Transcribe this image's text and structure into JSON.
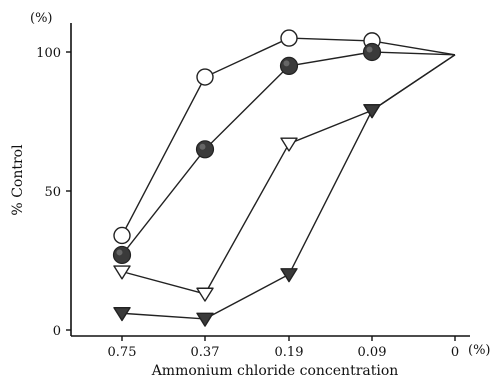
{
  "chart_data": {
    "type": "line",
    "xlabel": "Ammonium chloride concentration",
    "ylabel": "% Control",
    "x_unit": "(%)",
    "y_unit": "(%)",
    "categories": [
      "0.75",
      "0.37",
      "0.19",
      "0.09",
      "0"
    ],
    "y_ticks": [
      "0",
      "50",
      "100"
    ],
    "ylim": [
      0,
      110
    ],
    "grid": false,
    "legend": "none",
    "series": [
      {
        "marker": "open-circle",
        "values": [
          34,
          91,
          105,
          104,
          99
        ]
      },
      {
        "marker": "filled-circle",
        "values": [
          27,
          65,
          95,
          100,
          99
        ]
      },
      {
        "marker": "open-triangle-down",
        "values": [
          21,
          13,
          67,
          79,
          99
        ]
      },
      {
        "marker": "filled-triangle-down",
        "values": [
          6,
          4,
          20,
          79,
          99
        ]
      }
    ]
  }
}
